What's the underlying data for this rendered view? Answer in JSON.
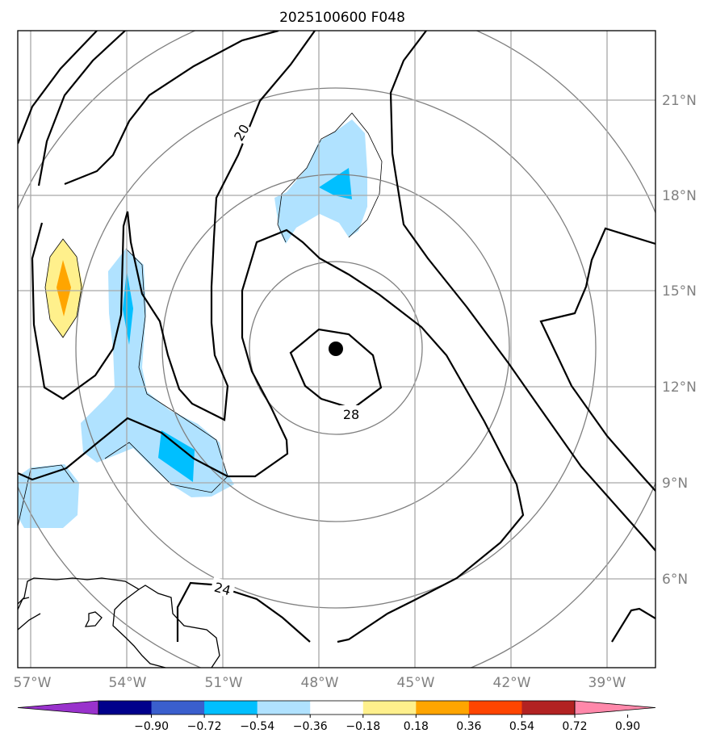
{
  "title": "2025100600 F048",
  "lat_ticks": [
    "21°N",
    "18°N",
    "15°N",
    "12°N",
    "9°N",
    "6°N"
  ],
  "lon_ticks": [
    "57°W",
    "54°W",
    "51°W",
    "48°W",
    "45°W",
    "42°W",
    "39°W"
  ],
  "contour_labels": [
    "20",
    "24",
    "28"
  ],
  "colorbar": {
    "colors": [
      "#9932cc",
      "#00008b",
      "#3a5fcd",
      "#00bfff",
      "#b0e2ff",
      "#ffffff",
      "#fff08c",
      "#ffa500",
      "#ff4500",
      "#b22222",
      "#ff88aa"
    ],
    "labels": [
      "−0.90",
      "−0.72",
      "−0.54",
      "−0.36",
      "−0.18",
      "0.18",
      "0.36",
      "0.54",
      "0.72",
      "0.90"
    ]
  },
  "map": {
    "center_marker": {
      "lat": 13.2,
      "lon": -47.6
    },
    "shading_colors": {
      "light_blue": "#b0e2ff",
      "blue": "#00bfff",
      "yellow": "#fff08c",
      "orange": "#ffa500"
    }
  }
}
